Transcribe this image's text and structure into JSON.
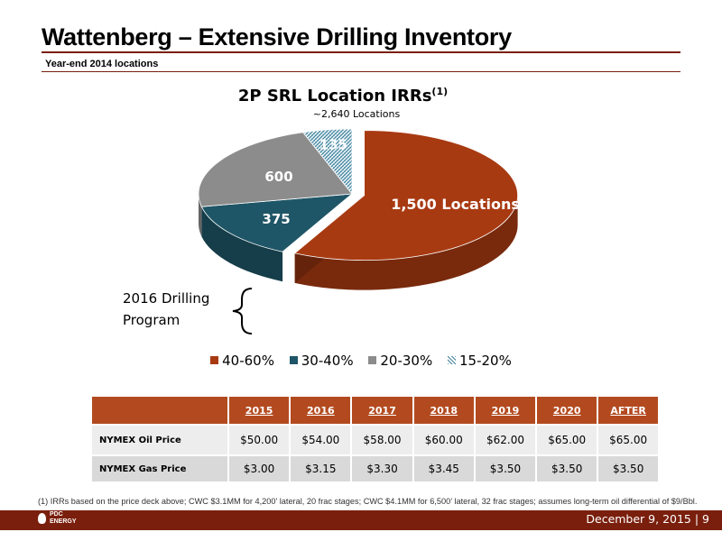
{
  "header": {
    "title": "Wattenberg – Extensive Drilling Inventory",
    "subtitle": "Year-end 2014 locations"
  },
  "chart_data": {
    "type": "pie",
    "title": "2P SRL Location IRRs",
    "title_superscript": "(1)",
    "subtitle": "~2,640 Locations",
    "slices": [
      {
        "label": "40-60%",
        "value": 1500,
        "display": "1,500 Locations",
        "color": "#a83a12"
      },
      {
        "label": "30-40%",
        "value": 375,
        "display": "375",
        "color": "#1f5667"
      },
      {
        "label": "20-30%",
        "value": 600,
        "display": "600",
        "color": "#8c8c8c"
      },
      {
        "label": "15-20%",
        "value": 135,
        "display": "135",
        "color": "#b5d6e3"
      }
    ],
    "legend_position": "bottom",
    "annotation": "2016 Drilling Program"
  },
  "table": {
    "columns": [
      "",
      "2015",
      "2016",
      "2017",
      "2018",
      "2019",
      "2020",
      "AFTER"
    ],
    "rows": [
      {
        "label": "NYMEX Oil Price",
        "values": [
          "$50.00",
          "$54.00",
          "$58.00",
          "$60.00",
          "$62.00",
          "$65.00",
          "$65.00"
        ]
      },
      {
        "label": "NYMEX Gas Price",
        "values": [
          "$3.00",
          "$3.15",
          "$3.30",
          "$3.45",
          "$3.50",
          "$3.50",
          "$3.50"
        ]
      }
    ]
  },
  "footnote": "(1)    IRRs based on the price deck above; CWC $3.1MM for 4,200’ lateral, 20 frac stages; CWC $4.1MM for 6,500’ lateral, 32 frac stages; assumes long-term oil differential of $9/Bbl.",
  "footer": {
    "date_page": "December 9, 2015  |  9",
    "logo_text": "PDC ENERGY"
  }
}
